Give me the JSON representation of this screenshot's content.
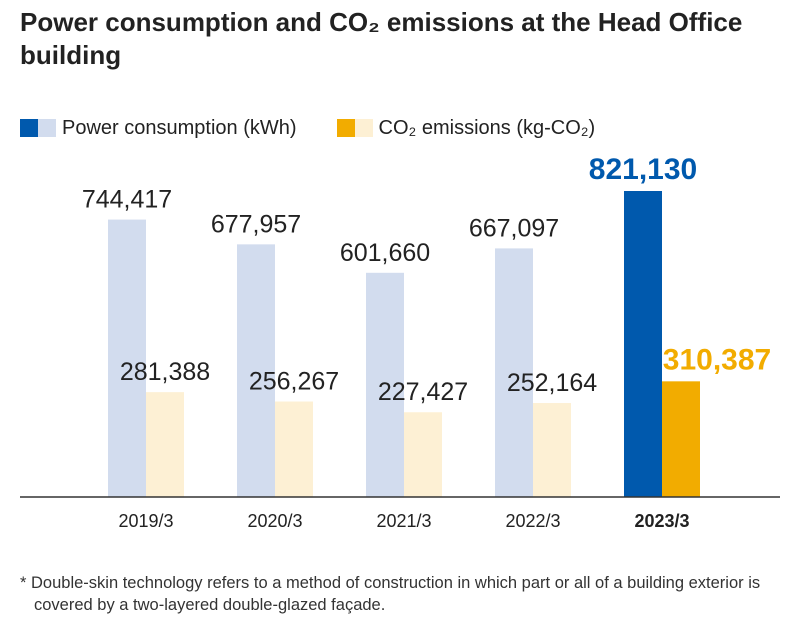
{
  "title": "Power consumption and CO₂ emissions at the Head Office building",
  "legend": {
    "power_label": "Power consumption (kWh)",
    "co2_label": "CO₂ emissions (kg-CO₂)"
  },
  "colors": {
    "power_light": "#d2dcee",
    "power_highlight": "#0059ad",
    "co2_light": "#fdf0d4",
    "co2_highlight": "#f2ac00",
    "axis": "#333333",
    "text": "#222222"
  },
  "chart_data": {
    "type": "bar",
    "title": "Power consumption and CO₂ emissions at the Head Office building",
    "xlabel": "",
    "ylabel": "",
    "categories": [
      "2019/3",
      "2020/3",
      "2021/3",
      "2022/3",
      "2023/3"
    ],
    "highlight_category": "2023/3",
    "series": [
      {
        "name": "Power consumption (kWh)",
        "values": [
          744417,
          677957,
          601660,
          667097,
          821130
        ],
        "labels": [
          "744,417",
          "677,957",
          "601,660",
          "667,097",
          "821,130"
        ]
      },
      {
        "name": "CO₂ emissions (kg-CO₂)",
        "values": [
          281388,
          256267,
          227427,
          252164,
          310387
        ],
        "labels": [
          "281,388",
          "256,267",
          "227,427",
          "252,164",
          "310,387"
        ]
      }
    ],
    "ylim": [
      0,
      900000
    ],
    "grid": false,
    "legend_position": "top-left"
  },
  "footnote": "* Double-skin technology refers to a method of construction in which part or all of a building exterior is covered by a two-layered double-glazed façade."
}
